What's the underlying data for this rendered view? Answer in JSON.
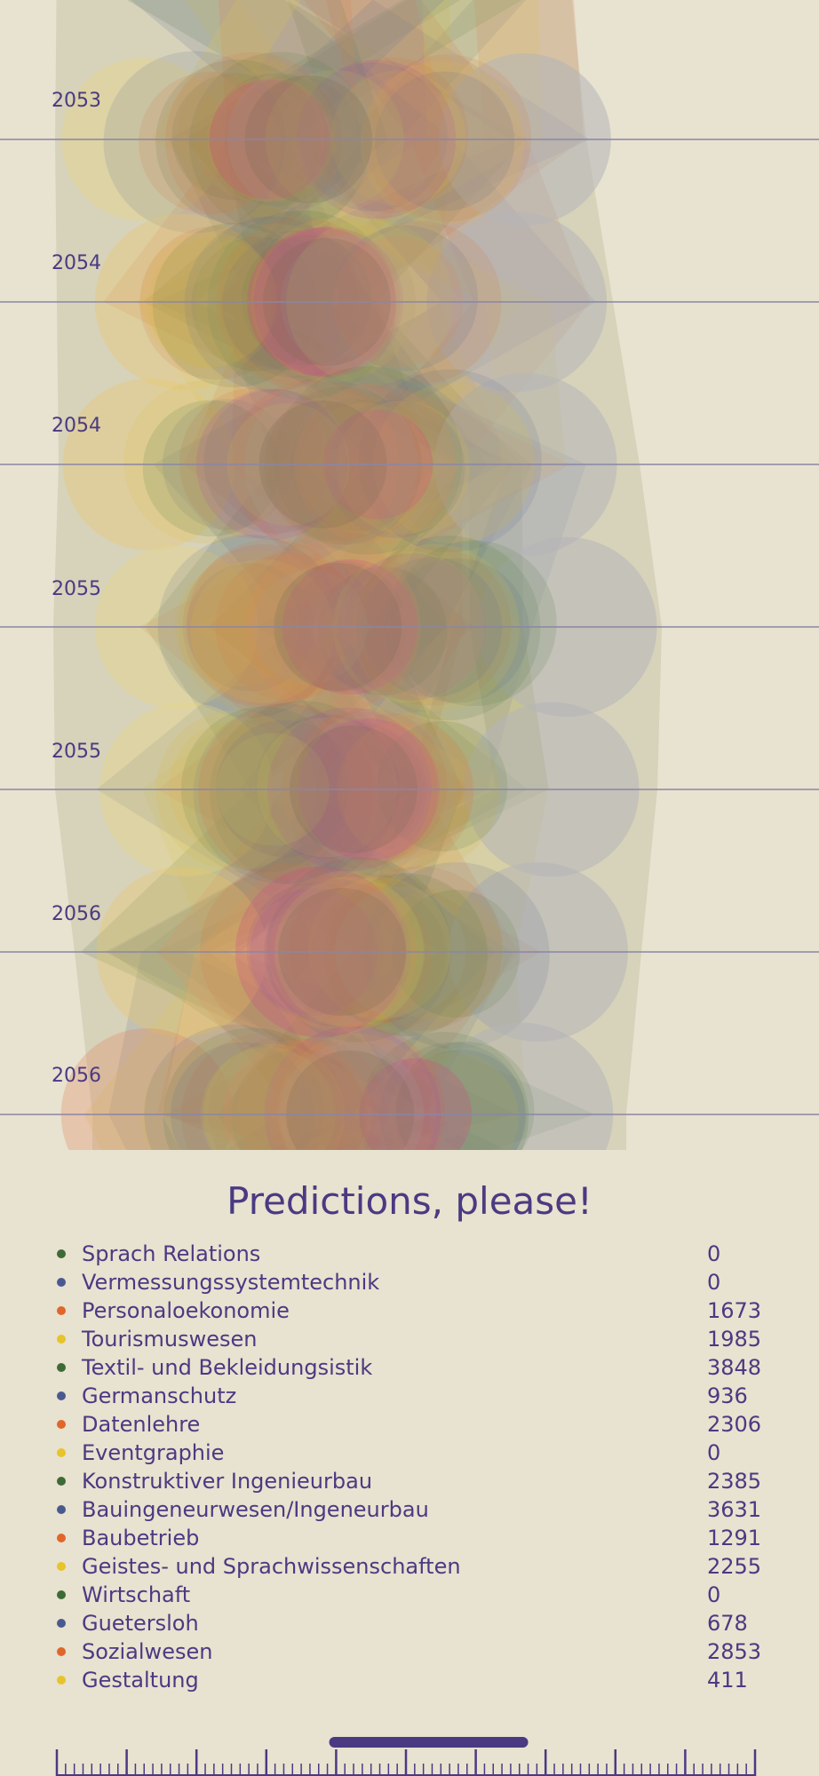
{
  "chart_data": {
    "type": "area",
    "title": "Predictions, please!",
    "y_axis_labels": [
      "2053",
      "2054",
      "2054",
      "2055",
      "2055",
      "2056",
      "2056"
    ],
    "series": [
      {
        "name": "Sprach Relations",
        "value": 0,
        "color": "#3d6b35"
      },
      {
        "name": "Vermessungssystemtechnik",
        "value": 0,
        "color": "#4a5a90"
      },
      {
        "name": "Personaloekonomie",
        "value": 1673,
        "color": "#e0662a"
      },
      {
        "name": "Tourismuswesen",
        "value": 1985,
        "color": "#e6c42a"
      },
      {
        "name": "Textil- und Bekleidungsistik",
        "value": 3848,
        "color": "#3d6b35"
      },
      {
        "name": "Germanschutz",
        "value": 936,
        "color": "#4a5a90"
      },
      {
        "name": "Datenlehre",
        "value": 2306,
        "color": "#e0662a"
      },
      {
        "name": "Eventgraphie",
        "value": 0,
        "color": "#e6c42a"
      },
      {
        "name": "Konstruktiver Ingenieurbau",
        "value": 2385,
        "color": "#3d6b35"
      },
      {
        "name": "Bauingeneurwesen/Ingeneurbau",
        "value": 3631,
        "color": "#4a5a90"
      },
      {
        "name": "Baubetrieb",
        "value": 1291,
        "color": "#e0662a"
      },
      {
        "name": "Geistes- und Sprachwissenschaften",
        "value": 2255,
        "color": "#e6c42a"
      },
      {
        "name": "Wirtschaft",
        "value": 0,
        "color": "#3d6b35"
      },
      {
        "name": "Guetersloh",
        "value": 678,
        "color": "#4a5a90"
      },
      {
        "name": "Sozialwesen",
        "value": 2853,
        "color": "#e0662a"
      },
      {
        "name": "Gestaltung",
        "value": 411,
        "color": "#e6c42a"
      }
    ],
    "timeline": {
      "selected_range_fraction": [
        0.39,
        0.675
      ]
    }
  }
}
